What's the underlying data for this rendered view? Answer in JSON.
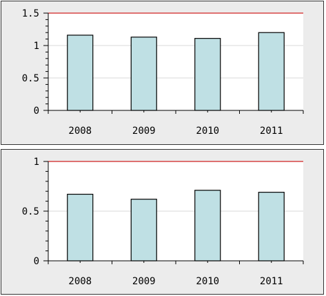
{
  "chart_data": [
    {
      "type": "bar",
      "categories": [
        "2008",
        "2009",
        "2010",
        "2011"
      ],
      "values": [
        1.16,
        1.13,
        1.11,
        1.2
      ],
      "ylim": [
        0,
        1.5
      ],
      "yticks": [
        "0",
        "0.5",
        "1",
        "1.5"
      ],
      "reference_line": 1.5,
      "grid": true,
      "colors": {
        "bar": "#bfe0e4",
        "bar_edge": "#000000",
        "reference_line": "#d02020",
        "grid": "#d8d8d8",
        "plot_bg": "#ffffff",
        "panel_bg": "#ececec"
      }
    },
    {
      "type": "bar",
      "categories": [
        "2008",
        "2009",
        "2010",
        "2011"
      ],
      "values": [
        0.67,
        0.62,
        0.71,
        0.69
      ],
      "ylim": [
        0,
        1
      ],
      "yticks": [
        "0",
        "0.5",
        "1"
      ],
      "reference_line": 1.0,
      "grid": true,
      "colors": {
        "bar": "#bfe0e4",
        "bar_edge": "#000000",
        "reference_line": "#d02020",
        "grid": "#d8d8d8",
        "plot_bg": "#ffffff",
        "panel_bg": "#ececec"
      }
    }
  ]
}
